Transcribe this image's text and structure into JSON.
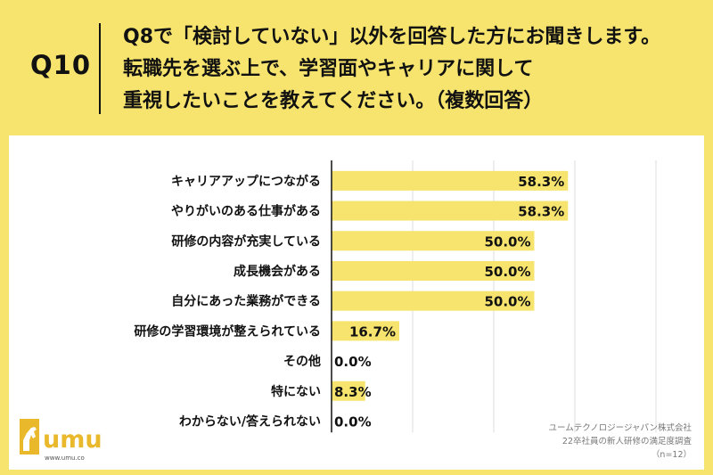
{
  "question": {
    "number": "Q10",
    "lines": [
      "Q8で「検討していない」以外を回答した方にお聞きします。",
      "転職先を選ぶ上で、学習面やキャリアに関して",
      "重視したいことを教えてください。（複数回答）"
    ]
  },
  "chart_data": {
    "type": "bar",
    "orientation": "horizontal",
    "categories": [
      "キャリアアップにつながる",
      "やりがいのある仕事がある",
      "研修の内容が充実している",
      "成長機会がある",
      "自分にあった業務ができる",
      "研修の学習環境が整えられている",
      "その他",
      "特にない",
      "わからない/答えられない"
    ],
    "values": [
      58.3,
      58.3,
      50.0,
      50.0,
      50.0,
      16.7,
      0.0,
      8.3,
      0.0
    ],
    "value_labels": [
      "58.3%",
      "58.3%",
      "50.0%",
      "50.0%",
      "50.0%",
      "16.7%",
      "0.0%",
      "8.3%",
      "0.0%"
    ],
    "xlim": [
      0,
      100
    ],
    "grid": true,
    "bar_color": "#f6e46e"
  },
  "logo": {
    "brand": "umu",
    "url": "www.umu.co"
  },
  "credit": {
    "line1": "ユームテクノロジージャパン株式会社",
    "line2": "22卒社員の新人研修の満足度調査",
    "line3": "（n=12）"
  }
}
